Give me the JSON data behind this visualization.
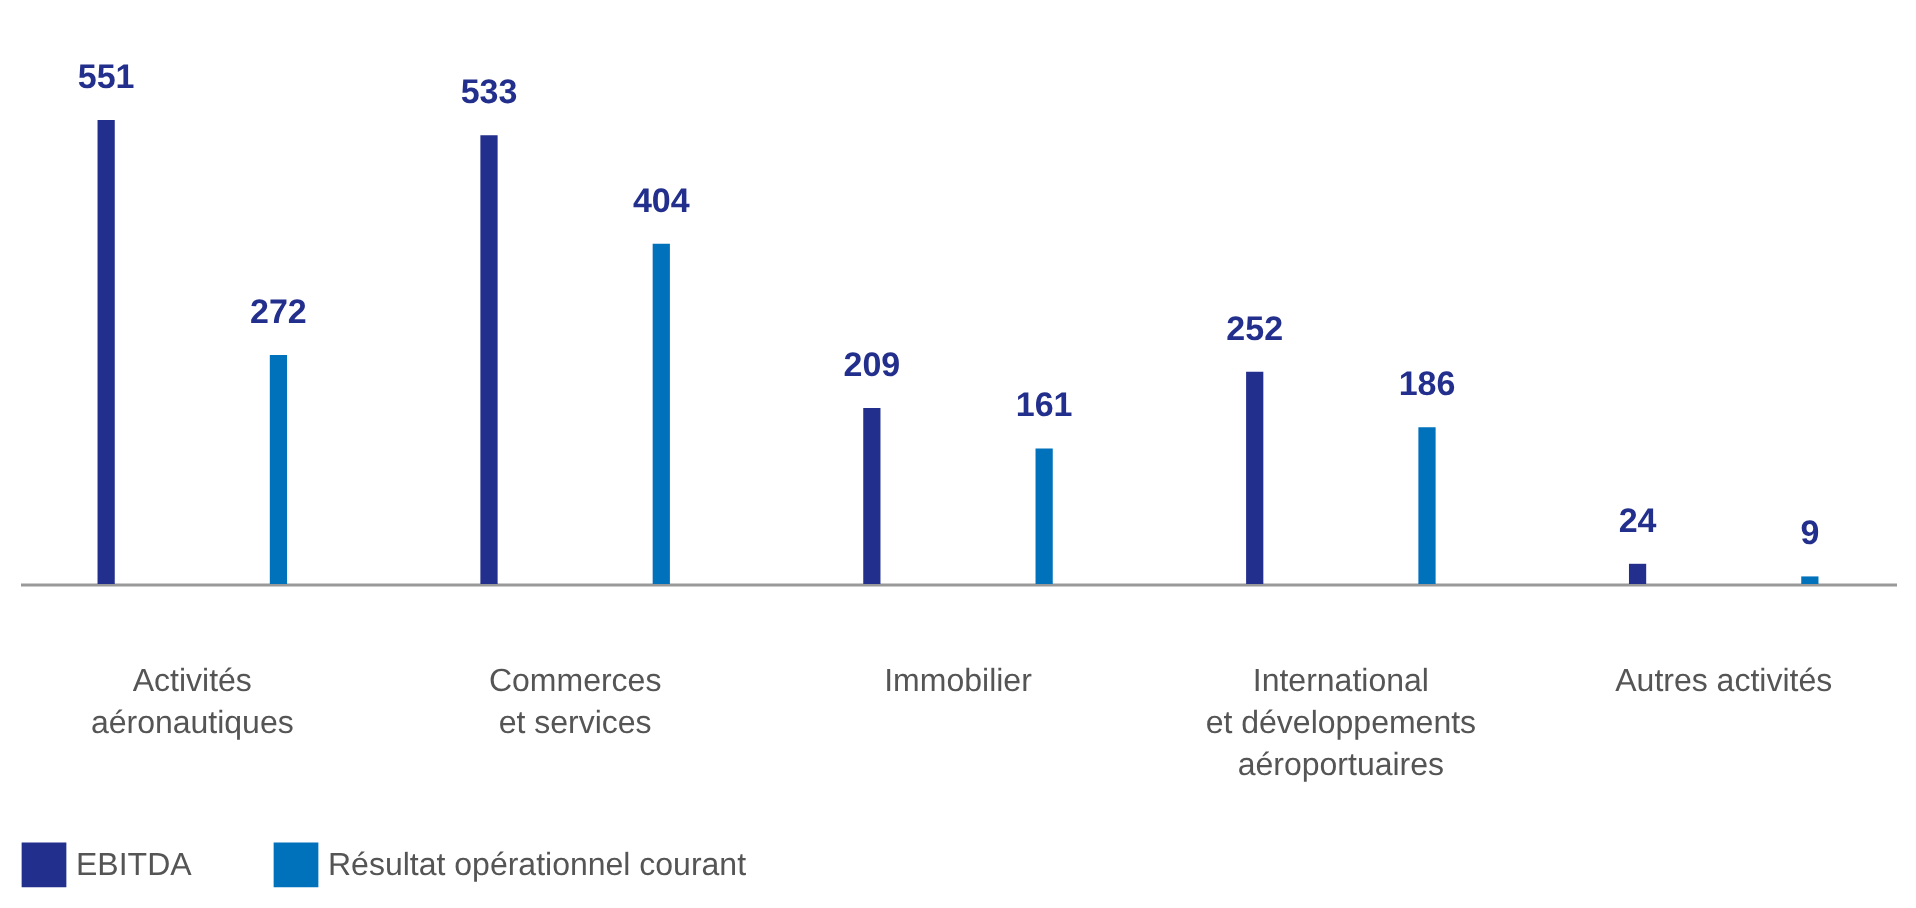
{
  "chart_data": {
    "type": "bar",
    "categories": [
      "Activités\naéronautiques",
      "Commerces\net services",
      "Immobilier",
      "International\net développements\naéroportuaires",
      "Autres activités"
    ],
    "series": [
      {
        "name": "EBITDA",
        "color": "#232f8c",
        "values": [
          551,
          533,
          209,
          252,
          24
        ]
      },
      {
        "name": "Résultat opérationnel courant",
        "color": "#0071bb",
        "values": [
          272,
          404,
          161,
          186,
          9
        ]
      }
    ],
    "data_labels": true,
    "legend": "bottom",
    "grid": false
  }
}
